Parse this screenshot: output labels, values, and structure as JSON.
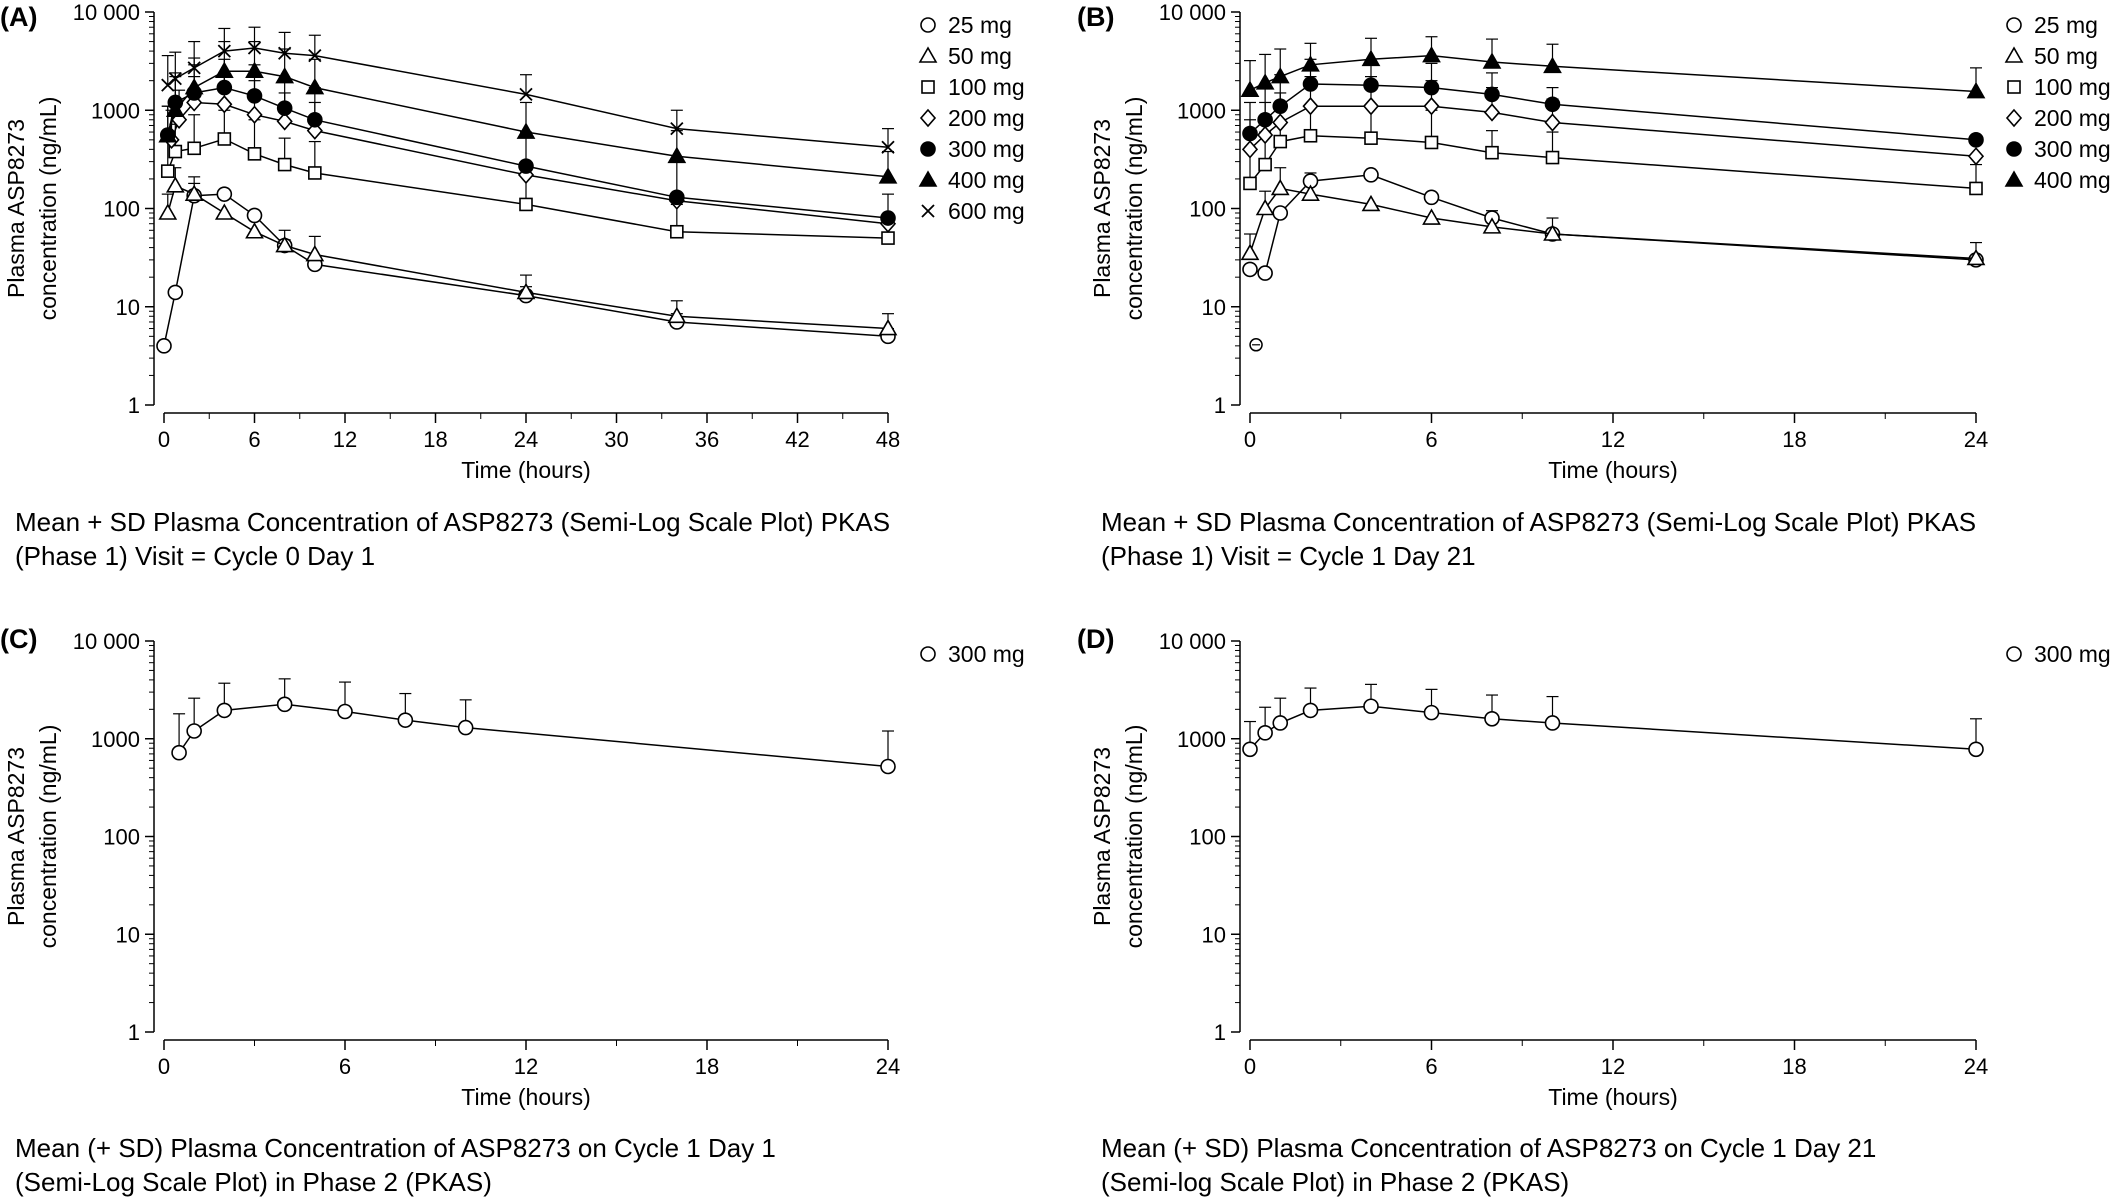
{
  "chart_data": [
    {
      "type": "line",
      "panel_label": "(A)",
      "ylabel_lines": [
        "Plasma ASP8273",
        "concentration (ng/mL)"
      ],
      "xlabel": "Time (hours)",
      "yscale": "log",
      "ylim": [
        1,
        10000
      ],
      "xlim": [
        0,
        48
      ],
      "xticks": [
        0,
        6,
        12,
        18,
        24,
        30,
        36,
        42,
        48
      ],
      "yticks": [
        1,
        10,
        100,
        1000,
        10000
      ],
      "ytick_labels": [
        "1",
        "10",
        "100",
        "1000",
        "10 000"
      ],
      "legend_position": "top-right",
      "caption_lines": [
        "Mean + SD Plasma Concentration of ASP8273 (Semi-Log Scale Plot) PKAS",
        "(Phase 1) Visit = Cycle 0 Day 1"
      ],
      "series": [
        {
          "name": "25 mg",
          "marker": "open-circle",
          "x": [
            0,
            0.75,
            2,
            4,
            6,
            8,
            10,
            24,
            34,
            48
          ],
          "y": [
            4,
            14,
            135,
            140,
            85,
            42,
            27,
            13,
            7,
            5
          ],
          "sd_upper": [
            null,
            null,
            180,
            null,
            null,
            48,
            null,
            16,
            8.5,
            6
          ]
        },
        {
          "name": "50 mg",
          "marker": "open-triangle",
          "x": [
            0.25,
            0.75,
            2,
            4,
            6,
            8,
            10,
            24,
            34,
            48
          ],
          "y": [
            90,
            170,
            140,
            90,
            58,
            42,
            34,
            14,
            8,
            6
          ],
          "sd_upper": [
            140,
            260,
            210,
            null,
            null,
            60,
            52,
            21,
            11.5,
            8.5
          ]
        },
        {
          "name": "100 mg",
          "marker": "open-square",
          "x": [
            0.25,
            0.75,
            2,
            4,
            6,
            8,
            10,
            24,
            34,
            48
          ],
          "y": [
            240,
            380,
            410,
            510,
            360,
            280,
            230,
            110,
            58,
            50
          ],
          "sd_upper": [
            520,
            720,
            900,
            1000,
            800,
            520,
            480,
            250,
            110,
            75
          ]
        },
        {
          "name": "200 mg",
          "marker": "open-diamond",
          "x": [
            0.5,
            1,
            2,
            4,
            6,
            8,
            10,
            24,
            34,
            48
          ],
          "y": [
            500,
            800,
            1200,
            1150,
            900,
            770,
            620,
            220,
            120,
            70
          ],
          "sd_upper": [
            1000,
            1600,
            2200,
            2400,
            2000,
            1500,
            1200,
            null,
            null,
            null
          ]
        },
        {
          "name": "300 mg",
          "marker": "filled-circle",
          "x": [
            0.25,
            0.75,
            2,
            4,
            6,
            8,
            10,
            24,
            34,
            48
          ],
          "y": [
            560,
            1200,
            1500,
            1700,
            1400,
            1050,
            800,
            270,
            130,
            80
          ],
          "sd_upper": [
            1100,
            2400,
            2900,
            3300,
            2900,
            2100,
            1700,
            600,
            300,
            140
          ]
        },
        {
          "name": "400 mg",
          "marker": "filled-triangle",
          "x": [
            0.25,
            0.75,
            2,
            4,
            6,
            8,
            10,
            24,
            34,
            48
          ],
          "y": [
            550,
            1000,
            1700,
            2500,
            2500,
            2200,
            1700,
            600,
            340,
            210
          ],
          "sd_upper": [
            1100,
            2200,
            3400,
            5000,
            5000,
            4200,
            3300,
            1200,
            620,
            380
          ]
        },
        {
          "name": "600 mg",
          "marker": "x-mark",
          "x": [
            0.25,
            0.75,
            2,
            4,
            6,
            8,
            10,
            24,
            34,
            48
          ],
          "y": [
            1800,
            2100,
            2700,
            4000,
            4300,
            3800,
            3600,
            1450,
            650,
            420
          ],
          "sd_upper": [
            3600,
            3900,
            5000,
            6800,
            7000,
            6200,
            5800,
            2300,
            1000,
            650
          ]
        }
      ]
    },
    {
      "type": "line",
      "panel_label": "(B)",
      "ylabel_lines": [
        "Plasma ASP8273",
        "concentration (ng/mL)"
      ],
      "xlabel": "Time (hours)",
      "yscale": "log",
      "ylim": [
        1,
        10000
      ],
      "xlim": [
        0,
        24
      ],
      "xticks": [
        0,
        6,
        12,
        18,
        24
      ],
      "yticks": [
        1,
        10,
        100,
        1000,
        10000
      ],
      "ytick_labels": [
        "1",
        "10",
        "100",
        "1000",
        "10 000"
      ],
      "legend_position": "top-right",
      "caption_lines": [
        "Mean + SD Plasma Concentration of ASP8273 (Semi-Log Scale Plot) PKAS",
        "(Phase 1) Visit = Cycle 1 Day 21"
      ],
      "series": [
        {
          "name": "25 mg",
          "marker": "open-circle",
          "x": [
            0,
            0.5,
            1,
            2,
            4,
            6,
            8,
            10,
            24
          ],
          "y": [
            24,
            22,
            90,
            190,
            220,
            130,
            80,
            55,
            30
          ],
          "sd_upper": [
            null,
            null,
            null,
            230,
            null,
            null,
            95,
            80,
            45
          ]
        },
        {
          "name": "50 mg",
          "marker": "open-triangle",
          "x": [
            0,
            0.5,
            1,
            2,
            4,
            6,
            8,
            10,
            24
          ],
          "y": [
            35,
            100,
            160,
            140,
            110,
            80,
            65,
            55,
            31
          ],
          "sd_upper": [
            55,
            150,
            260,
            null,
            null,
            null,
            null,
            null,
            null
          ]
        },
        {
          "name": "100 mg",
          "marker": "open-square",
          "x": [
            0,
            0.5,
            1,
            2,
            4,
            6,
            8,
            10,
            24
          ],
          "y": [
            180,
            280,
            480,
            550,
            520,
            470,
            370,
            330,
            160
          ],
          "sd_upper": [
            420,
            600,
            1000,
            1100,
            1100,
            1000,
            620,
            600,
            280
          ]
        },
        {
          "name": "200 mg",
          "marker": "open-diamond",
          "x": [
            0,
            0.5,
            1,
            2,
            4,
            6,
            8,
            10,
            24
          ],
          "y": [
            400,
            560,
            750,
            1100,
            1100,
            1100,
            950,
            750,
            340
          ],
          "sd_upper": [
            800,
            1200,
            1500,
            2200,
            2200,
            2000,
            1700,
            1300,
            null
          ]
        },
        {
          "name": "300 mg",
          "marker": "filled-circle",
          "x": [
            0,
            0.5,
            1,
            2,
            4,
            6,
            8,
            10,
            24
          ],
          "y": [
            580,
            800,
            1100,
            1850,
            1800,
            1700,
            1450,
            1150,
            500
          ],
          "sd_upper": [
            1200,
            1700,
            2300,
            3300,
            3200,
            3000,
            2400,
            1700,
            null
          ]
        },
        {
          "name": "400 mg",
          "marker": "filled-triangle",
          "x": [
            0,
            0.5,
            1,
            2,
            4,
            6,
            8,
            10,
            24
          ],
          "y": [
            1600,
            1900,
            2200,
            2900,
            3300,
            3600,
            3100,
            2800,
            1550
          ],
          "sd_upper": [
            3200,
            3700,
            4200,
            4800,
            5400,
            5600,
            5300,
            4700,
            2700
          ]
        }
      ],
      "outlier_point": {
        "x": 0.2,
        "y": 4.1
      }
    },
    {
      "type": "line",
      "panel_label": "(C)",
      "ylabel_lines": [
        "Plasma ASP8273",
        "concentration (ng/mL)"
      ],
      "xlabel": "Time (hours)",
      "yscale": "log",
      "ylim": [
        1,
        10000
      ],
      "xlim": [
        0,
        24
      ],
      "xticks": [
        0,
        6,
        12,
        18,
        24
      ],
      "yticks": [
        1,
        10,
        100,
        1000,
        10000
      ],
      "ytick_labels": [
        "1",
        "10",
        "100",
        "1000",
        "10 000"
      ],
      "legend_position": "top-right",
      "caption_lines": [
        "Mean (+ SD) Plasma Concentration of ASP8273 on Cycle 1 Day 1",
        "(Semi-Log Scale Plot) in Phase 2 (PKAS)"
      ],
      "series": [
        {
          "name": "300 mg",
          "marker": "open-circle",
          "x": [
            0.5,
            1,
            2,
            4,
            6,
            8,
            10,
            24
          ],
          "y": [
            720,
            1200,
            1950,
            2250,
            1900,
            1550,
            1300,
            520
          ],
          "sd_upper": [
            1800,
            2600,
            3700,
            4100,
            3800,
            2900,
            2500,
            1200
          ]
        }
      ]
    },
    {
      "type": "line",
      "panel_label": "(D)",
      "ylabel_lines": [
        "Plasma ASP8273",
        "concentration (ng/mL)"
      ],
      "xlabel": "Time (hours)",
      "yscale": "log",
      "ylim": [
        1,
        10000
      ],
      "xlim": [
        0,
        24
      ],
      "xticks": [
        0,
        6,
        12,
        18,
        24
      ],
      "yticks": [
        1,
        10,
        100,
        1000,
        10000
      ],
      "ytick_labels": [
        "1",
        "10",
        "100",
        "1000",
        "10 000"
      ],
      "legend_position": "top-right",
      "caption_lines": [
        "Mean (+ SD) Plasma Concentration of ASP8273 on Cycle 1 Day 21",
        "(Semi-log Scale Plot) in Phase 2 (PKAS)"
      ],
      "series": [
        {
          "name": "300 mg",
          "marker": "open-circle",
          "x": [
            0,
            0.5,
            1,
            2,
            4,
            6,
            8,
            10,
            24
          ],
          "y": [
            780,
            1150,
            1450,
            1950,
            2150,
            1850,
            1600,
            1450,
            780
          ],
          "sd_upper": [
            1500,
            2100,
            2600,
            3300,
            3600,
            3200,
            2800,
            2700,
            1600
          ]
        }
      ]
    }
  ]
}
